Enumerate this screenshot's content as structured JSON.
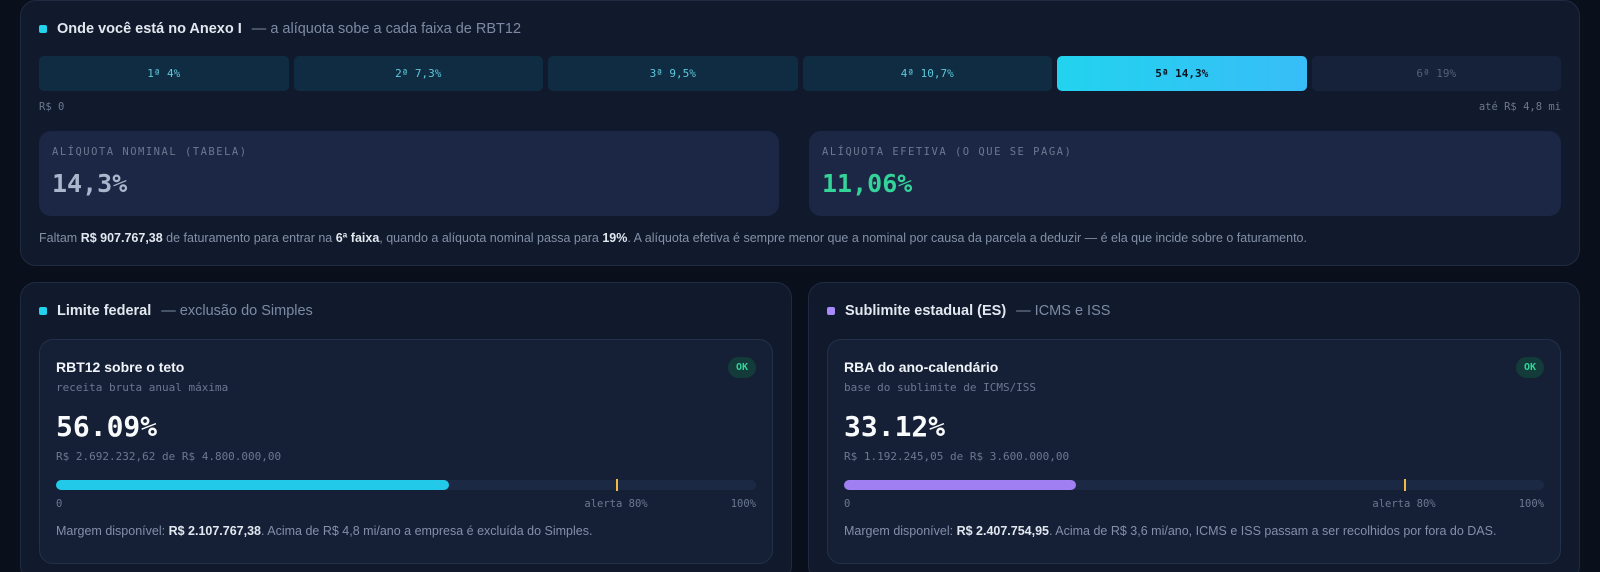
{
  "annex": {
    "title": "Onde você está no Anexo I",
    "subtitle": "— a alíquota sobe a cada faixa de RBT12",
    "bands": [
      {
        "label": "1ª 4%",
        "state": "past"
      },
      {
        "label": "2ª 7,3%",
        "state": "past"
      },
      {
        "label": "3ª 9,5%",
        "state": "past"
      },
      {
        "label": "4ª 10,7%",
        "state": "past"
      },
      {
        "label": "5ª 14,3%",
        "state": "active"
      },
      {
        "label": "6ª 19%",
        "state": "future"
      }
    ],
    "scale_start": "R$ 0",
    "scale_end": "até R$ 4,8 mi",
    "nominal_label": "ALÍQUOTA NOMINAL (TABELA)",
    "nominal_value": "14,3%",
    "effective_label": "ALÍQUOTA EFETIVA (O QUE SE PAGA)",
    "effective_value": "11,06%",
    "note": {
      "p1": "Faltam ",
      "amount": "R$ 907.767,38",
      "p2": " de faturamento para entrar na ",
      "band": "6ª faixa",
      "p3": ", quando a alíquota nominal passa para ",
      "rate": "19%",
      "p4": ". A alíquota efetiva é sempre menor que a nominal por causa da parcela a deduzir — é ela que incide sobre o faturamento."
    }
  },
  "federal": {
    "title": "Limite federal",
    "subtitle": "— exclusão do Simples",
    "box_title": "RBT12 sobre o teto",
    "box_sub": "receita bruta anual máxima",
    "badge": "OK",
    "percent": "56.09%",
    "fill": 0.5609,
    "alert_fraction": 0.8,
    "amounts": "R$ 2.692.232,62 de R$ 4.800.000,00",
    "label_start": "0",
    "label_alert": "alerta 80%",
    "label_end": "100%",
    "margin_prefix": "Margem disponível: ",
    "margin_value": "R$ 2.107.767,38",
    "margin_suffix": ". Acima de R$ 4,8 mi/ano a empresa é excluída do Simples.",
    "color": "#22d3ee"
  },
  "state": {
    "title": "Sublimite estadual (ES)",
    "subtitle": "— ICMS e ISS",
    "box_title": "RBA do ano-calendário",
    "box_sub": "base do sublimite de ICMS/ISS",
    "badge": "OK",
    "percent": "33.12%",
    "fill": 0.3312,
    "alert_fraction": 0.8,
    "amounts": "R$ 1.192.245,05 de R$ 3.600.000,00",
    "label_start": "0",
    "label_alert": "alerta 80%",
    "label_end": "100%",
    "margin_prefix": "Margem disponível: ",
    "margin_value": "R$ 2.407.754,95",
    "margin_suffix": ". Acima de R$ 3,6 mi/ano, ICMS e ISS passam a ser recolhidos por fora do DAS.",
    "color": "#a78bfa"
  }
}
